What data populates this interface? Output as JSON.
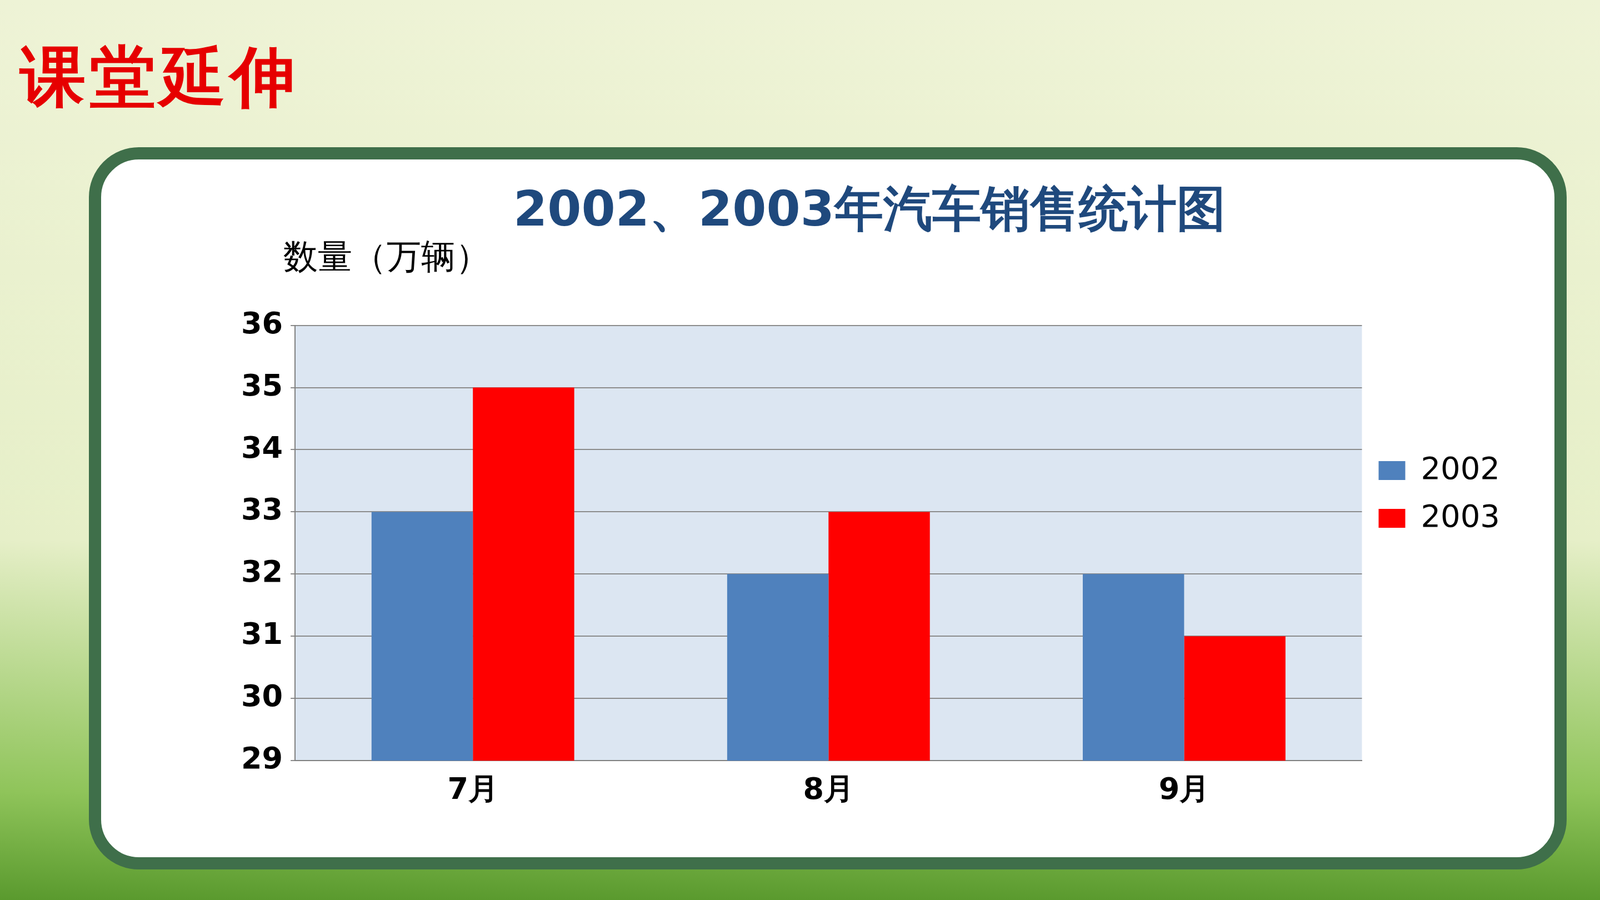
{
  "header": "课堂延伸",
  "chart_data": {
    "type": "bar",
    "title": "2002、2003年汽车销售统计图",
    "y_label": "数量（万辆）",
    "categories": [
      "7月",
      "8月",
      "9月"
    ],
    "series": [
      {
        "name": "2002",
        "color": "#4f81bd",
        "values": [
          33,
          32,
          32
        ]
      },
      {
        "name": "2003",
        "color": "#ff0000",
        "values": [
          35,
          33,
          31
        ]
      }
    ],
    "ylim": [
      29,
      36
    ],
    "yticks": [
      29,
      30,
      31,
      32,
      33,
      34,
      35,
      36
    ],
    "grid": true,
    "legend": "right"
  }
}
